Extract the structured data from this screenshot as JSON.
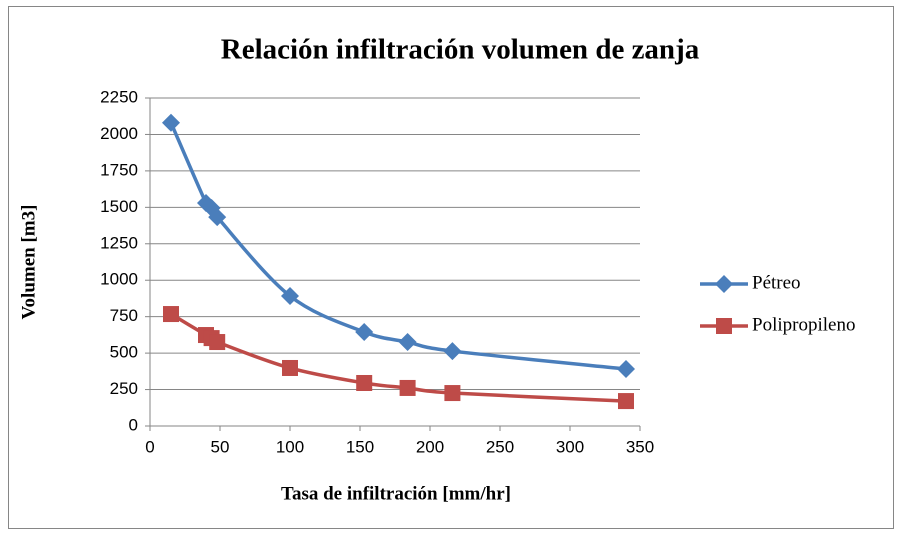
{
  "chart_data": {
    "type": "scatter",
    "title": "Relación infiltración volumen de zanja",
    "xlabel": "Tasa de infiltración  [mm/hr]",
    "ylabel": "Volumen [m3]",
    "xlim": [
      0,
      350
    ],
    "xticks": [
      0,
      50,
      100,
      150,
      200,
      250,
      300,
      350
    ],
    "ylim": [
      0,
      2250
    ],
    "yticks": [
      0,
      250,
      500,
      750,
      1000,
      1250,
      1500,
      1750,
      2000,
      2250
    ],
    "grid": true,
    "legend": "right",
    "smooth": true,
    "series": [
      {
        "name": "Pétreo",
        "color": "#4a7ebb",
        "marker": "diamond",
        "x": [
          15,
          40,
          44,
          48,
          100,
          153,
          184,
          216,
          340
        ],
        "values": [
          2080,
          1530,
          1495,
          1433,
          892,
          645,
          576,
          514,
          391
        ]
      },
      {
        "name": "Polipropileno",
        "color": "#be4b48",
        "marker": "square",
        "x": [
          15,
          40,
          44,
          48,
          100,
          153,
          184,
          216,
          340
        ],
        "values": [
          768,
          624,
          603,
          576,
          398,
          295,
          261,
          226,
          171
        ]
      }
    ]
  }
}
